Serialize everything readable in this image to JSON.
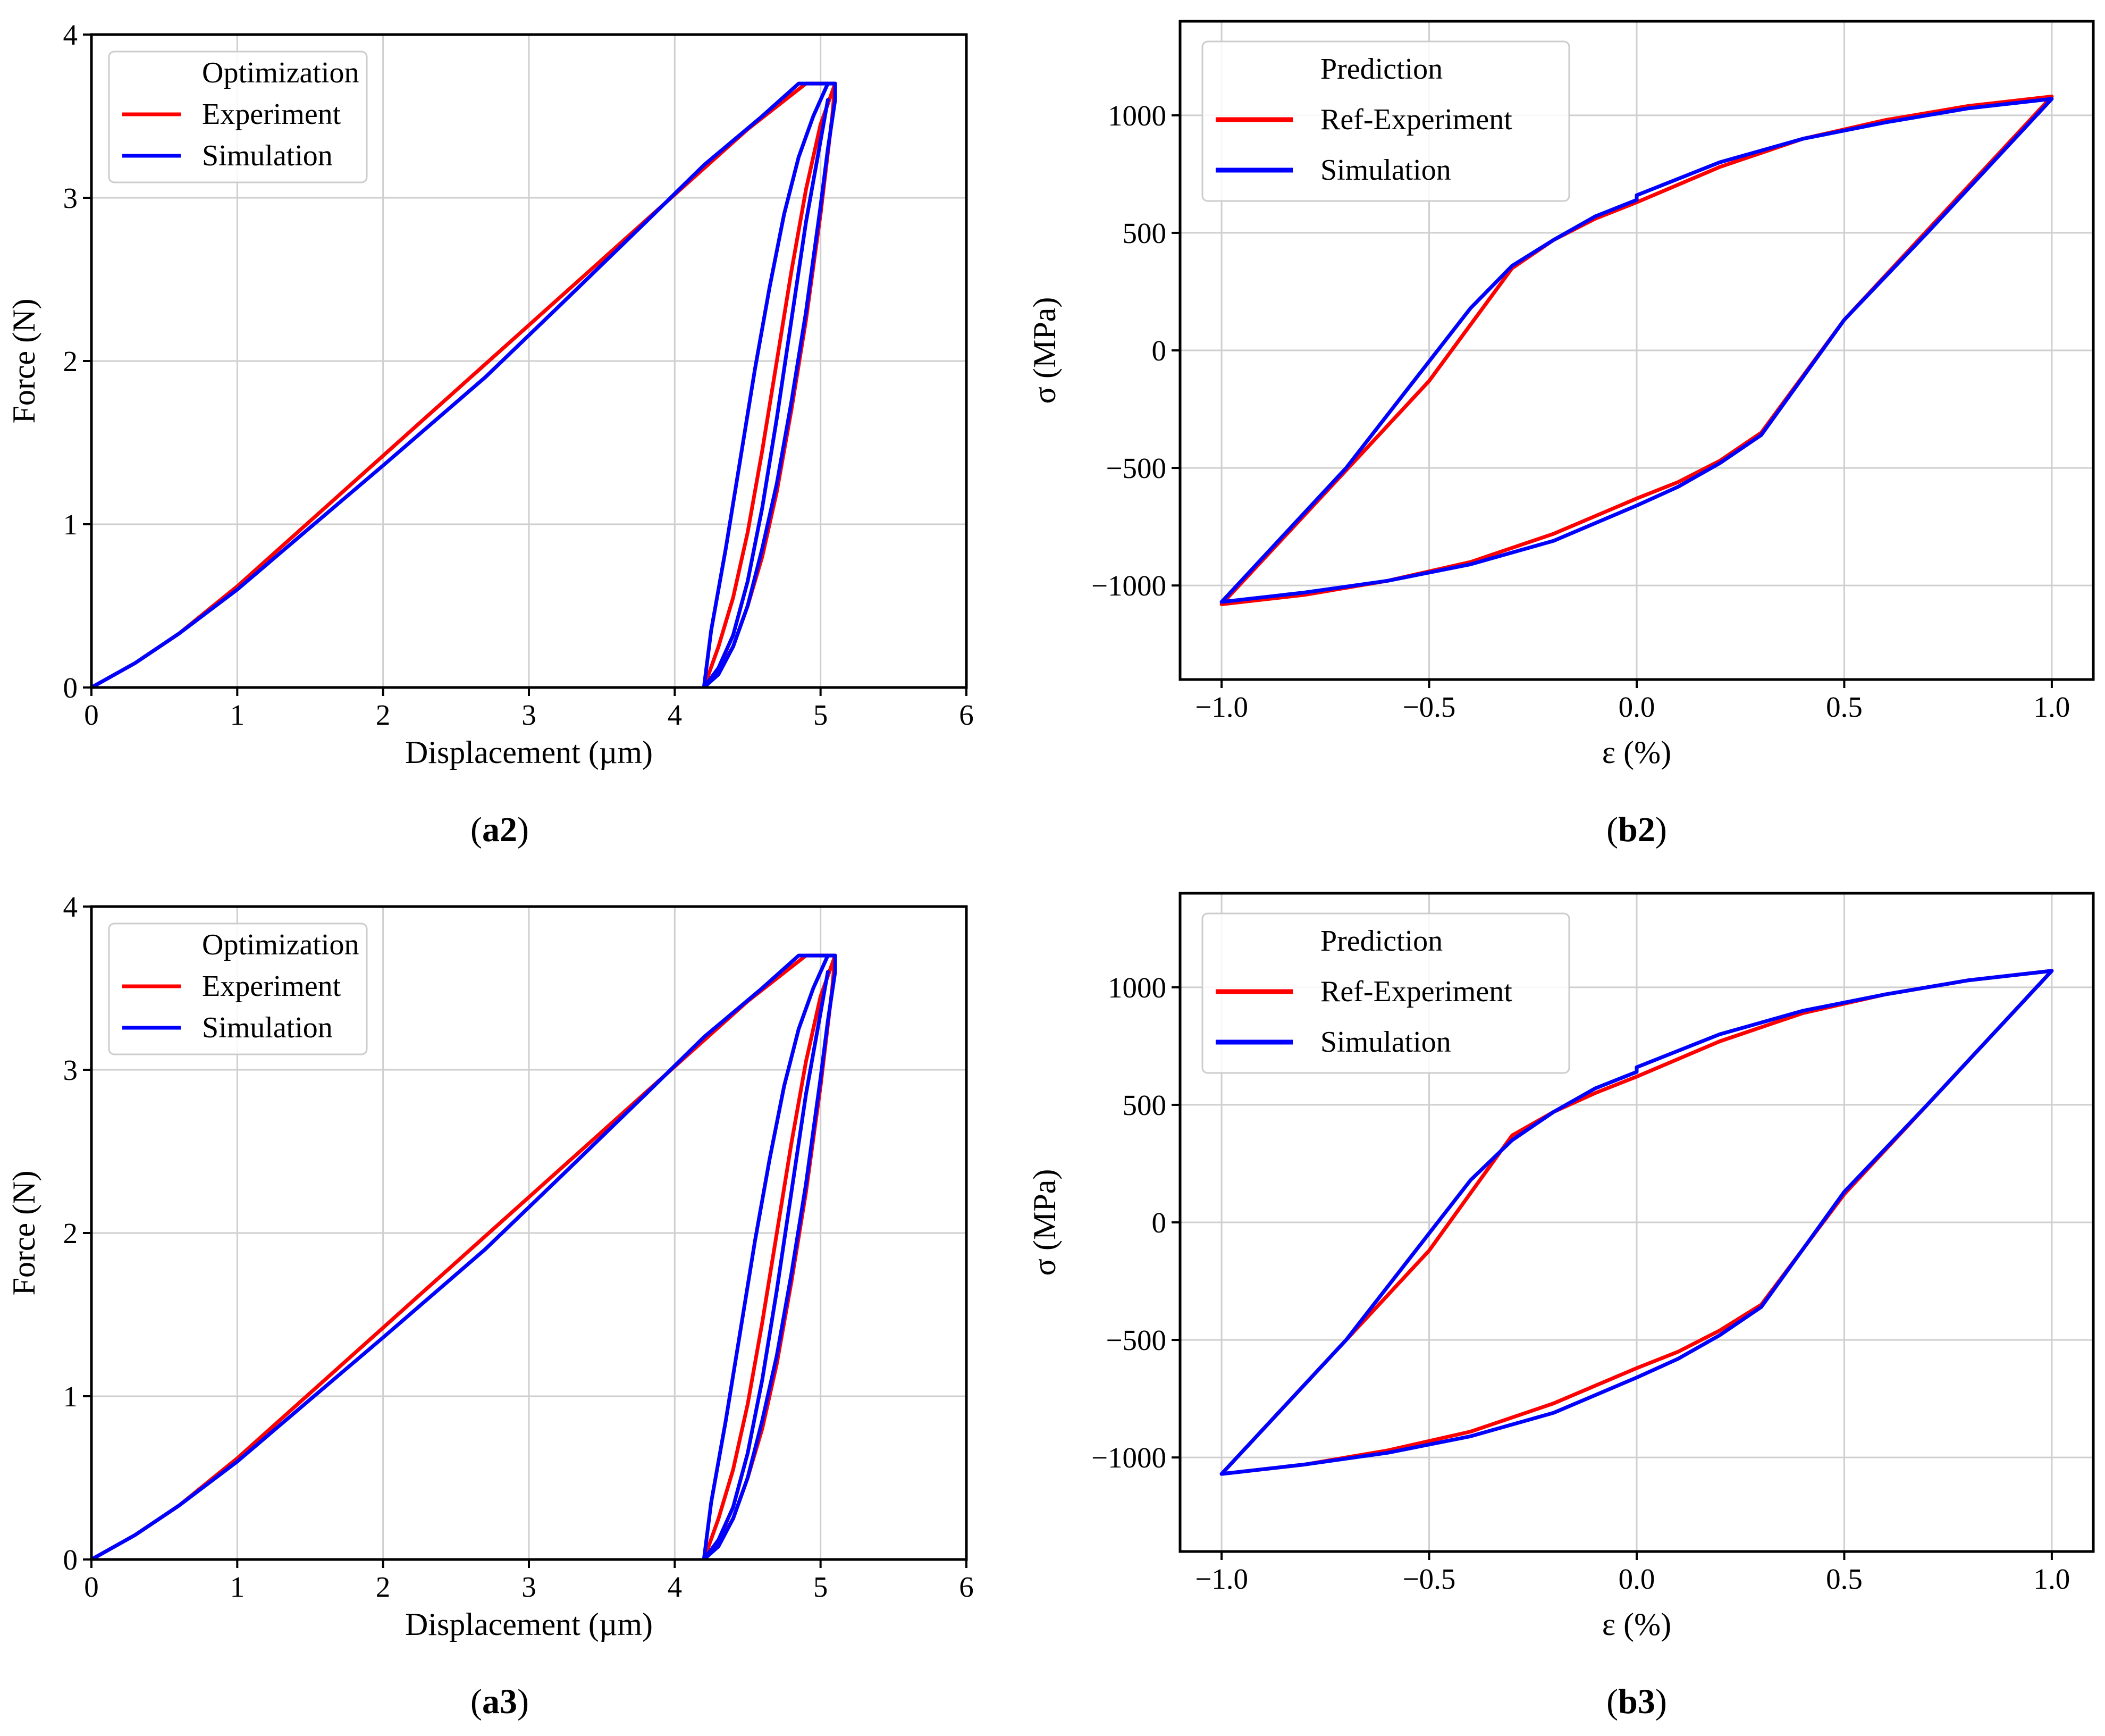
{
  "colors": {
    "experiment": "#ff0000",
    "simulation": "#0000ff"
  },
  "chart_data": [
    {
      "id": "a2",
      "panel": {
        "open": "(",
        "bold": "a2",
        "close": ")"
      },
      "type": "line",
      "xlabel": "Displacement (µm)",
      "ylabel": "Force  (N)",
      "xlim": [
        0,
        6
      ],
      "ylim": [
        0,
        4
      ],
      "xticks": [
        0,
        1,
        2,
        3,
        4,
        5,
        6
      ],
      "yticks": [
        0,
        1,
        2,
        3,
        4
      ],
      "xtick_labels": [
        "0",
        "1",
        "2",
        "3",
        "4",
        "5",
        "6"
      ],
      "ytick_labels": [
        "0",
        "1",
        "2",
        "3",
        "4"
      ],
      "grid": true,
      "legend": {
        "title": "Optimization",
        "entries": [
          "Experiment",
          "Simulation"
        ],
        "placement": "upper-left"
      },
      "series": [
        {
          "name": "Experiment",
          "color": "#ff0000",
          "x": [
            0,
            0.3,
            0.6,
            1.0,
            1.5,
            2.0,
            2.5,
            3.0,
            3.5,
            4.0,
            4.5,
            4.9,
            5.1,
            5.08,
            5.0,
            4.9,
            4.8,
            4.7,
            4.6,
            4.5,
            4.4,
            4.3,
            4.2
          ],
          "y": [
            0,
            0.15,
            0.33,
            0.62,
            1.02,
            1.42,
            1.82,
            2.22,
            2.62,
            3.02,
            3.42,
            3.7,
            3.7,
            3.5,
            2.9,
            2.25,
            1.7,
            1.2,
            0.8,
            0.5,
            0.25,
            0.1,
            0
          ]
        },
        {
          "name": "Experiment",
          "color": "#ff0000",
          "x": [
            4.2,
            4.3,
            4.4,
            4.5,
            4.6,
            4.7,
            4.8,
            4.9,
            5.0,
            5.08,
            5.1
          ],
          "y": [
            0,
            0.25,
            0.55,
            0.95,
            1.45,
            2.0,
            2.55,
            3.05,
            3.45,
            3.65,
            3.7
          ]
        },
        {
          "name": "Simulation",
          "color": "#0000ff",
          "x": [
            0,
            0.3,
            0.6,
            1.0,
            1.5,
            2.0,
            2.7,
            3.2,
            3.8,
            4.2,
            4.6,
            4.85,
            4.95,
            5.1,
            5.1,
            5.05,
            5.0,
            4.9,
            4.8,
            4.7,
            4.6,
            4.5,
            4.4,
            4.3,
            4.2
          ],
          "y": [
            0,
            0.15,
            0.33,
            0.6,
            0.98,
            1.36,
            1.9,
            2.33,
            2.85,
            3.2,
            3.5,
            3.7,
            3.7,
            3.7,
            3.6,
            3.3,
            2.95,
            2.3,
            1.75,
            1.25,
            0.85,
            0.5,
            0.25,
            0.08,
            0
          ]
        },
        {
          "name": "Simulation",
          "color": "#0000ff",
          "x": [
            4.2,
            4.25,
            4.35,
            4.45,
            4.55,
            4.65,
            4.75,
            4.85,
            4.95,
            5.05
          ],
          "y": [
            0,
            0.35,
            0.85,
            1.4,
            1.95,
            2.45,
            2.9,
            3.25,
            3.5,
            3.7
          ]
        },
        {
          "name": "Simulation",
          "color": "#0000ff",
          "x": [
            4.2,
            4.3,
            4.4,
            4.5,
            4.6,
            4.7,
            4.8,
            4.9,
            5.0,
            5.05
          ],
          "y": [
            0,
            0.12,
            0.32,
            0.65,
            1.1,
            1.65,
            2.25,
            2.85,
            3.35,
            3.6
          ]
        }
      ]
    },
    {
      "id": "b2",
      "panel": {
        "open": "(",
        "bold": "b2",
        "close": ")"
      },
      "type": "line",
      "xlabel": "ε (%)",
      "ylabel": "σ (MPa)",
      "xlim": [
        -1.1,
        1.1
      ],
      "ylim": [
        -1400,
        1400
      ],
      "xticks": [
        -1.0,
        -0.5,
        0.0,
        0.5,
        1.0
      ],
      "yticks": [
        -1000,
        -500,
        0,
        500,
        1000
      ],
      "xtick_labels": [
        "−1.0",
        "−0.5",
        "0.0",
        "0.5",
        "1.0"
      ],
      "ytick_labels": [
        "−1000",
        "−500",
        "0",
        "500",
        "1000"
      ],
      "grid": true,
      "legend": {
        "title": "Prediction",
        "entries": [
          "Ref-Experiment",
          "Simulation"
        ],
        "placement": "upper-left"
      },
      "series": [
        {
          "name": "Ref-Experiment",
          "color": "#ff0000",
          "x": [
            -1.0,
            -0.7,
            -0.5,
            -0.3,
            -0.2,
            -0.1,
            0.0,
            0.2,
            0.4,
            0.6,
            0.8,
            1.0,
            0.7,
            0.5,
            0.3,
            0.2,
            0.1,
            0.0,
            -0.2,
            -0.4,
            -0.6,
            -0.8,
            -1.0
          ],
          "y": [
            -1080,
            -510,
            -130,
            350,
            470,
            560,
            630,
            780,
            900,
            980,
            1040,
            1080,
            510,
            130,
            -350,
            -470,
            -560,
            -630,
            -780,
            -900,
            -980,
            -1040,
            -1080
          ]
        },
        {
          "name": "Simulation",
          "color": "#0000ff",
          "x": [
            -1.0,
            -0.7,
            -0.4,
            -0.3,
            -0.2,
            -0.1,
            0.0,
            0.0,
            0.2,
            0.4,
            0.6,
            0.8,
            1.0,
            0.7,
            0.5,
            0.3,
            0.2,
            0.1,
            0.0,
            -0.2,
            -0.4,
            -0.6,
            -0.8,
            -1.0
          ],
          "y": [
            -1070,
            -500,
            180,
            360,
            470,
            570,
            640,
            660,
            800,
            900,
            970,
            1030,
            1070,
            500,
            130,
            -360,
            -480,
            -580,
            -660,
            -810,
            -910,
            -980,
            -1030,
            -1070
          ]
        }
      ]
    },
    {
      "id": "a3",
      "panel": {
        "open": "(",
        "bold": "a3",
        "close": ")"
      },
      "type": "line",
      "xlabel": "Displacement (µm)",
      "ylabel": "Force  (N)",
      "xlim": [
        0,
        6
      ],
      "ylim": [
        0,
        4
      ],
      "xticks": [
        0,
        1,
        2,
        3,
        4,
        5,
        6
      ],
      "yticks": [
        0,
        1,
        2,
        3,
        4
      ],
      "xtick_labels": [
        "0",
        "1",
        "2",
        "3",
        "4",
        "5",
        "6"
      ],
      "ytick_labels": [
        "0",
        "1",
        "2",
        "3",
        "4"
      ],
      "grid": true,
      "legend": {
        "title": "Optimization",
        "entries": [
          "Experiment",
          "Simulation"
        ],
        "placement": "upper-left"
      },
      "series": [
        {
          "name": "Experiment",
          "color": "#ff0000",
          "x": [
            0,
            0.3,
            0.6,
            1.0,
            1.5,
            2.0,
            2.5,
            3.0,
            3.5,
            4.0,
            4.5,
            4.9,
            5.1,
            5.08,
            5.0,
            4.9,
            4.8,
            4.7,
            4.6,
            4.5,
            4.4,
            4.3,
            4.2
          ],
          "y": [
            0,
            0.15,
            0.33,
            0.62,
            1.02,
            1.42,
            1.82,
            2.22,
            2.62,
            3.02,
            3.42,
            3.7,
            3.7,
            3.5,
            2.9,
            2.25,
            1.7,
            1.2,
            0.8,
            0.5,
            0.25,
            0.1,
            0
          ]
        },
        {
          "name": "Experiment",
          "color": "#ff0000",
          "x": [
            4.2,
            4.3,
            4.4,
            4.5,
            4.6,
            4.7,
            4.8,
            4.9,
            5.0,
            5.08,
            5.1
          ],
          "y": [
            0,
            0.25,
            0.55,
            0.95,
            1.45,
            2.0,
            2.55,
            3.05,
            3.45,
            3.65,
            3.7
          ]
        },
        {
          "name": "Simulation",
          "color": "#0000ff",
          "x": [
            0,
            0.3,
            0.6,
            1.0,
            1.5,
            2.0,
            2.7,
            3.2,
            3.8,
            4.2,
            4.6,
            4.85,
            4.95,
            5.1,
            5.1,
            5.05,
            5.0,
            4.9,
            4.8,
            4.7,
            4.6,
            4.5,
            4.4,
            4.3,
            4.2
          ],
          "y": [
            0,
            0.15,
            0.33,
            0.6,
            0.98,
            1.36,
            1.9,
            2.33,
            2.85,
            3.2,
            3.5,
            3.7,
            3.7,
            3.7,
            3.6,
            3.3,
            2.95,
            2.3,
            1.75,
            1.25,
            0.85,
            0.5,
            0.25,
            0.08,
            0
          ]
        },
        {
          "name": "Simulation",
          "color": "#0000ff",
          "x": [
            4.2,
            4.25,
            4.35,
            4.45,
            4.55,
            4.65,
            4.75,
            4.85,
            4.95,
            5.05
          ],
          "y": [
            0,
            0.35,
            0.85,
            1.4,
            1.95,
            2.45,
            2.9,
            3.25,
            3.5,
            3.7
          ]
        },
        {
          "name": "Simulation",
          "color": "#0000ff",
          "x": [
            4.2,
            4.3,
            4.4,
            4.5,
            4.6,
            4.7,
            4.8,
            4.9,
            5.0,
            5.05
          ],
          "y": [
            0,
            0.12,
            0.32,
            0.65,
            1.1,
            1.65,
            2.25,
            2.85,
            3.35,
            3.6
          ]
        }
      ]
    },
    {
      "id": "b3",
      "panel": {
        "open": "(",
        "bold": "b3",
        "close": ")"
      },
      "type": "line",
      "xlabel": "ε (%)",
      "ylabel": "σ (MPa)",
      "xlim": [
        -1.1,
        1.1
      ],
      "ylim": [
        -1400,
        1400
      ],
      "xticks": [
        -1.0,
        -0.5,
        0.0,
        0.5,
        1.0
      ],
      "yticks": [
        -1000,
        -500,
        0,
        500,
        1000
      ],
      "xtick_labels": [
        "−1.0",
        "−0.5",
        "0.0",
        "0.5",
        "1.0"
      ],
      "ytick_labels": [
        "−1000",
        "−500",
        "0",
        "500",
        "1000"
      ],
      "grid": true,
      "legend": {
        "title": "Prediction",
        "entries": [
          "Ref-Experiment",
          "Simulation"
        ],
        "placement": "upper-left"
      },
      "series": [
        {
          "name": "Ref-Experiment",
          "color": "#ff0000",
          "x": [
            -1.0,
            -0.7,
            -0.5,
            -0.3,
            -0.2,
            -0.1,
            0.0,
            0.2,
            0.4,
            0.6,
            0.8,
            1.0,
            0.7,
            0.5,
            0.3,
            0.2,
            0.1,
            0.0,
            -0.2,
            -0.4,
            -0.6,
            -0.8,
            -1.0
          ],
          "y": [
            -1070,
            -500,
            -120,
            370,
            470,
            550,
            620,
            770,
            890,
            970,
            1030,
            1070,
            500,
            120,
            -350,
            -460,
            -550,
            -620,
            -770,
            -890,
            -970,
            -1030,
            -1070
          ]
        },
        {
          "name": "Simulation",
          "color": "#0000ff",
          "x": [
            -1.0,
            -0.7,
            -0.4,
            -0.3,
            -0.2,
            -0.1,
            0.0,
            0.0,
            0.2,
            0.4,
            0.6,
            0.8,
            1.0,
            0.7,
            0.5,
            0.3,
            0.2,
            0.1,
            0.0,
            -0.2,
            -0.4,
            -0.6,
            -0.8,
            -1.0
          ],
          "y": [
            -1070,
            -500,
            180,
            350,
            470,
            570,
            640,
            660,
            800,
            900,
            970,
            1030,
            1070,
            500,
            130,
            -360,
            -480,
            -580,
            -660,
            -810,
            -910,
            -980,
            -1030,
            -1070
          ]
        }
      ]
    }
  ]
}
